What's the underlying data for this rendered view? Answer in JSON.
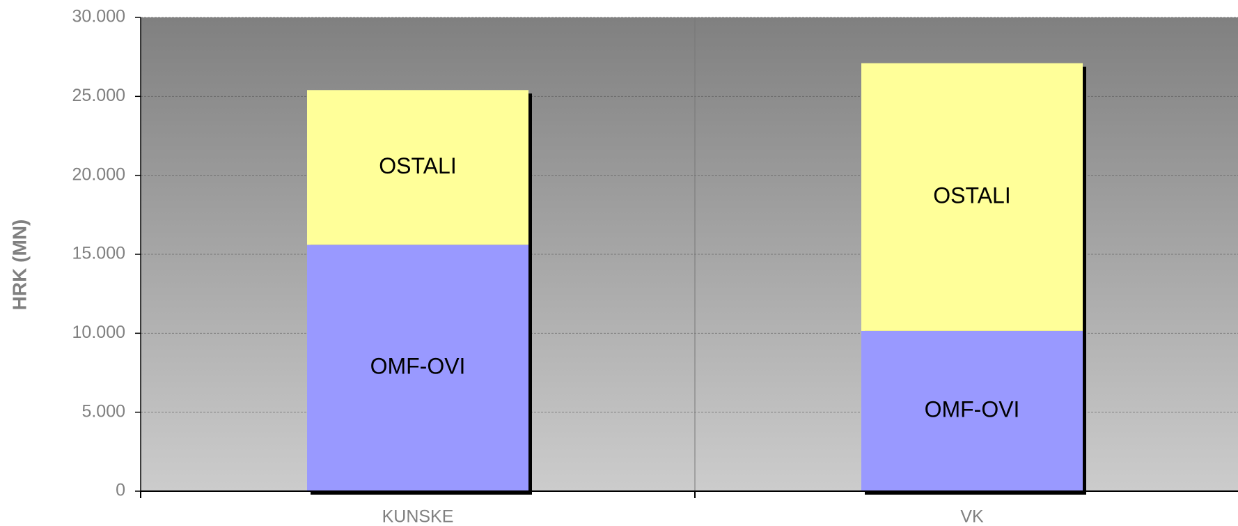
{
  "chart_data": {
    "type": "stacked_bar",
    "y_label": "HRK (MN)",
    "categories": [
      "KUNSKE",
      "VK"
    ],
    "series": [
      {
        "name": "OMF-OVI",
        "color": "#9999ff",
        "values": [
          15600,
          10150
        ]
      },
      {
        "name": "OSTALI",
        "color": "#ffff99",
        "values": [
          9800,
          16950
        ]
      }
    ],
    "ylim": [
      0,
      30000
    ],
    "yticks": [
      0,
      {
        "value": 5000,
        "label": "5.000"
      },
      {
        "value": 10000,
        "label": "10.000"
      },
      {
        "value": 15000,
        "label": "15.000"
      },
      {
        "value": 20000,
        "label": "20.000"
      },
      {
        "value": 25000,
        "label": "25.000"
      },
      {
        "value": 30000,
        "label": "30.000"
      }
    ],
    "grid": true
  }
}
